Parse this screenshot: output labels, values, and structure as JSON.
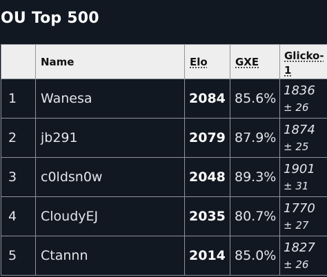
{
  "page": {
    "title": "OU Top 500"
  },
  "table": {
    "columns": [
      {
        "key": "rank",
        "label": ""
      },
      {
        "key": "name",
        "label": "Name"
      },
      {
        "key": "elo",
        "label": "Elo"
      },
      {
        "key": "gxe",
        "label": "GXE"
      },
      {
        "key": "glicko",
        "label": "Glicko-1"
      }
    ],
    "rows": [
      {
        "rank": "1",
        "name": "Wanesa",
        "elo": "2084",
        "gxe": "85.6%",
        "glicko_rating": "1836",
        "glicko_dev": "± 26"
      },
      {
        "rank": "2",
        "name": "jb291",
        "elo": "2079",
        "gxe": "87.9%",
        "glicko_rating": "1874",
        "glicko_dev": "± 25"
      },
      {
        "rank": "3",
        "name": "c0ldsn0w",
        "elo": "2048",
        "gxe": "89.3%",
        "glicko_rating": "1901",
        "glicko_dev": "± 31"
      },
      {
        "rank": "4",
        "name": "CloudyEJ",
        "elo": "2035",
        "gxe": "80.7%",
        "glicko_rating": "1770",
        "glicko_dev": "± 27"
      },
      {
        "rank": "5",
        "name": "Ctannn",
        "elo": "2014",
        "gxe": "85.0%",
        "glicko_rating": "1827",
        "glicko_dev": "± 26"
      }
    ]
  }
}
